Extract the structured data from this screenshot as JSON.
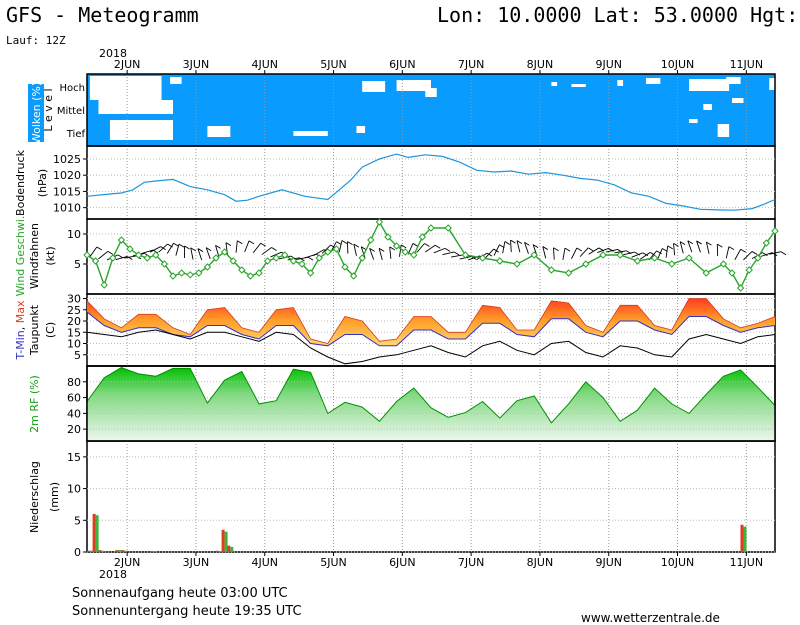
{
  "header": {
    "title": "GFS - Meteogramm",
    "location": "Lon: 10.0000 Lat: 53.0000 Hgt: 8",
    "run": "Lauf: 12Z"
  },
  "footer": {
    "sunrise": "Sonnenaufgang heute 03:00 UTC",
    "sunset": "Sonnenuntergang heute 19:35 UTC",
    "credit": "www.wetterzentrale.de"
  },
  "chart_data": {
    "type": "meteogram",
    "year": "2018",
    "days": [
      "2JUN",
      "3JUN",
      "4JUN",
      "5JUN",
      "6JUN",
      "7JUN",
      "8JUN",
      "9JUN",
      "10JUN",
      "11JUN"
    ],
    "panels": {
      "clouds": {
        "ylabel": "Wolken (%)",
        "axis_label": "L e v e l",
        "levels": [
          "Hoch",
          "Mittel",
          "Tief"
        ],
        "colors": {
          "clear": "#0a9bff",
          "cloud": "#ffffff"
        }
      },
      "pressure": {
        "ylabel": "Bodendruck (hPa)",
        "ticks": [
          1010,
          1015,
          1020,
          1025
        ],
        "ylim": [
          1006.5,
          1029
        ],
        "t": [
          0,
          8,
          12,
          16,
          20,
          24,
          30,
          36,
          42,
          48,
          52,
          56,
          60,
          68,
          76,
          84,
          88,
          92,
          96,
          102,
          108,
          112,
          118,
          124,
          130,
          136,
          142,
          148,
          154,
          160,
          166,
          172,
          178,
          184,
          190,
          196,
          202,
          208,
          214,
          220,
          226,
          232,
          236,
          240
        ],
        "values": [
          1013.5,
          1014.2,
          1014.5,
          1015.5,
          1017.8,
          1018.2,
          1018.7,
          1016.5,
          1015.5,
          1014.0,
          1012.0,
          1012.3,
          1013.5,
          1015.5,
          1013.5,
          1012.5,
          1015.5,
          1018.5,
          1022.5,
          1025.0,
          1026.5,
          1025.5,
          1026.3,
          1025.8,
          1024.0,
          1021.5,
          1021.0,
          1021.3,
          1020.3,
          1020.8,
          1020.0,
          1019.0,
          1018.5,
          1017.0,
          1014.5,
          1013.5,
          1011.3,
          1010.5,
          1009.5,
          1009.3,
          1009.2,
          1009.7,
          1011.0,
          1012.5
        ],
        "color": "#1c96dc"
      },
      "wind": {
        "ylabel": "Wind Geschwi. (kt)",
        "ylabel2": "Windfahnen",
        "ticks": [
          5,
          10
        ],
        "ylim": [
          0,
          12.5
        ],
        "t": [
          0,
          3,
          6,
          9,
          12,
          15,
          18,
          21,
          24,
          27,
          30,
          33,
          36,
          39,
          42,
          45,
          48,
          51,
          54,
          57,
          60,
          63,
          66,
          69,
          72,
          75,
          78,
          81,
          84,
          87,
          90,
          93,
          96,
          99,
          102,
          105,
          108,
          111,
          114,
          117,
          120,
          126,
          132,
          138,
          144,
          150,
          156,
          162,
          168,
          174,
          180,
          186,
          192,
          198,
          204,
          210,
          216,
          222,
          225,
          228,
          231,
          234,
          237,
          240
        ],
        "values": [
          6.5,
          5.5,
          1.5,
          6.0,
          9.0,
          7.5,
          6.5,
          6.0,
          6.5,
          5.0,
          3.0,
          3.5,
          3.2,
          3.5,
          4.5,
          6.0,
          7.0,
          5.5,
          4.0,
          3.0,
          3.5,
          5.5,
          6.0,
          6.5,
          5.5,
          5.0,
          3.5,
          6.0,
          7.0,
          7.5,
          4.5,
          3.0,
          6.0,
          9.0,
          12.0,
          9.5,
          8.0,
          7.0,
          6.5,
          9.5,
          11.0,
          11.0,
          6.5,
          6.0,
          5.5,
          5.0,
          6.5,
          4.0,
          3.5,
          5.0,
          6.5,
          6.5,
          5.5,
          6.0,
          5.0,
          6.0,
          3.5,
          5.0,
          3.5,
          1.0,
          4.0,
          6.0,
          8.5,
          10.5
        ],
        "color": "#2aa52a"
      },
      "temperature": {
        "ylabel": "T-Min, Max (C)",
        "ylabel2": "Taupunkt",
        "ticks": [
          5,
          10,
          15,
          20,
          25,
          30
        ],
        "ylim": [
          0,
          32
        ],
        "t": [
          0,
          6,
          12,
          18,
          24,
          30,
          36,
          42,
          48,
          54,
          60,
          66,
          72,
          78,
          84,
          90,
          96,
          102,
          108,
          114,
          120,
          126,
          132,
          138,
          144,
          150,
          156,
          162,
          168,
          174,
          180,
          186,
          192,
          198,
          204,
          210,
          216,
          222,
          228,
          234,
          240
        ],
        "tmax": [
          29,
          21,
          17,
          23,
          23,
          17,
          14,
          25,
          26,
          17,
          15,
          25,
          26,
          12,
          10,
          22,
          20,
          11,
          12,
          22,
          22,
          15,
          15,
          27,
          26,
          16,
          16,
          29,
          28,
          18,
          15,
          27,
          27,
          18,
          16,
          30,
          30,
          21,
          17,
          19,
          22
        ],
        "tmin": [
          24,
          18,
          15,
          17,
          17,
          14,
          13,
          18,
          18,
          14,
          12,
          18,
          18,
          10,
          9,
          14,
          14,
          9,
          9,
          16,
          16,
          12,
          12,
          19,
          19,
          14,
          13,
          21,
          21,
          15,
          13,
          20,
          20,
          16,
          14,
          22,
          22,
          18,
          15,
          17,
          18
        ],
        "dewpoint": [
          15,
          14,
          13,
          15,
          16,
          14,
          12,
          15,
          15,
          13,
          11,
          15,
          14,
          8,
          4,
          1,
          2,
          4,
          5,
          7,
          9,
          6,
          4,
          9,
          11,
          7,
          5,
          10,
          11,
          6,
          4,
          9,
          8,
          5,
          4,
          12,
          14,
          12,
          10,
          13,
          14
        ],
        "colors": {
          "warm": "#ff3c1e",
          "mid": "#ff9c28",
          "cool": "#ffd870",
          "tmin": "#3232c8",
          "dewpoint": "#000000"
        }
      },
      "humidity": {
        "ylabel": "2m RF (%)",
        "ticks": [
          20,
          40,
          60,
          80
        ],
        "ylim": [
          5,
          100
        ],
        "t": [
          0,
          6,
          12,
          18,
          24,
          30,
          36,
          42,
          48,
          54,
          60,
          66,
          72,
          78,
          84,
          90,
          96,
          102,
          108,
          114,
          120,
          126,
          132,
          138,
          144,
          150,
          156,
          162,
          168,
          174,
          180,
          186,
          192,
          198,
          204,
          210,
          216,
          222,
          228,
          234,
          240
        ],
        "values": [
          55,
          85,
          98,
          90,
          87,
          97,
          97,
          53,
          82,
          93,
          52,
          56,
          96,
          92,
          40,
          54,
          48,
          30,
          55,
          72,
          47,
          35,
          41,
          55,
          34,
          56,
          62,
          28,
          52,
          80,
          60,
          30,
          44,
          72,
          52,
          40,
          64,
          87,
          95,
          73,
          50
        ],
        "colors": {
          "high": "#00c000",
          "low": "#e8f4e8"
        }
      },
      "precip": {
        "ylabel": "Niederschlag (mm)",
        "ticks": [
          0,
          5,
          10,
          15
        ],
        "ylim": [
          0,
          17.5
        ],
        "bars": [
          {
            "t": 1,
            "red": 0.2,
            "green": 0.2
          },
          {
            "t": 3,
            "red": 6.0,
            "green": 5.8
          },
          {
            "t": 5,
            "red": 0.3,
            "green": 0.2
          },
          {
            "t": 11,
            "red": 0.3,
            "green": 0.3
          },
          {
            "t": 13,
            "red": 0.3,
            "green": 0.2
          },
          {
            "t": 23,
            "red": 0.1,
            "green": 0.1
          },
          {
            "t": 46,
            "red": 0.2,
            "green": 0.1
          },
          {
            "t": 48,
            "red": 3.5,
            "green": 3.2
          },
          {
            "t": 50,
            "red": 1.0,
            "green": 0.8
          },
          {
            "t": 229,
            "red": 4.3,
            "green": 4.0
          }
        ],
        "colors": {
          "red": "#e03c1e",
          "green": "#3cb43c"
        }
      }
    }
  }
}
